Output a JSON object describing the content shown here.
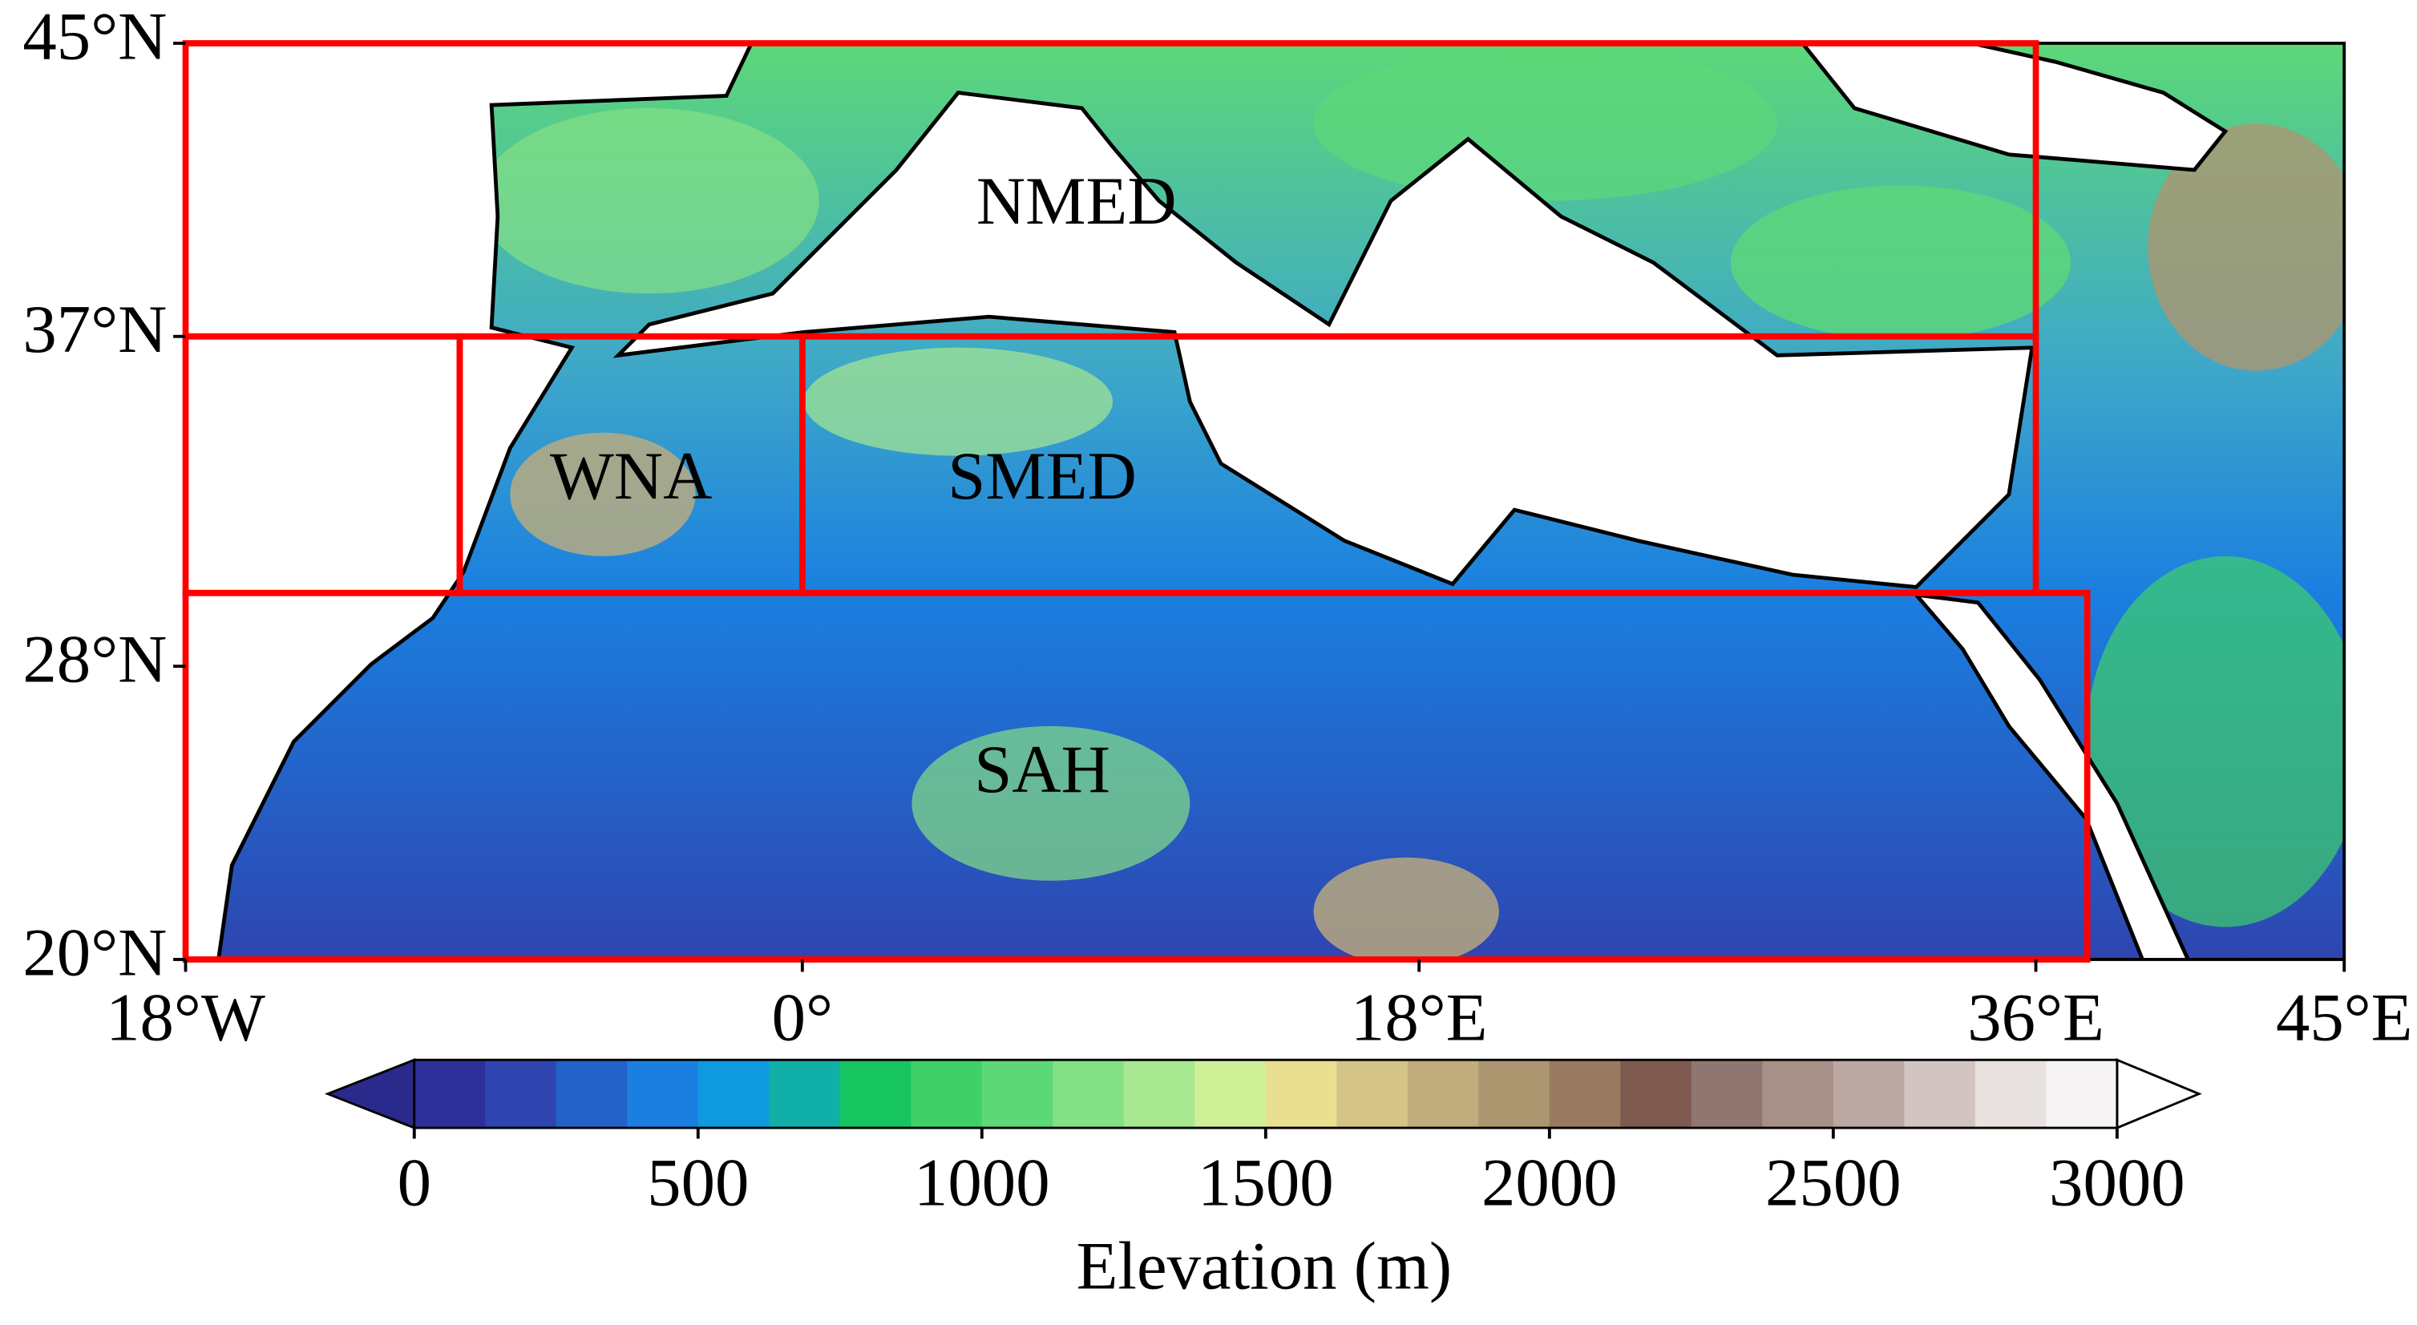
{
  "map": {
    "lonlim": [
      -18,
      45
    ],
    "latlim": [
      20,
      45
    ],
    "xticks": [
      {
        "value": -18,
        "label": "18°W"
      },
      {
        "value": 0,
        "label": "0°"
      },
      {
        "value": 18,
        "label": "18°E"
      },
      {
        "value": 36,
        "label": "36°E"
      },
      {
        "value": 45,
        "label": "45°E"
      }
    ],
    "yticks": [
      {
        "value": 20,
        "label": "20°N"
      },
      {
        "value": 28,
        "label": "28°N"
      },
      {
        "value": 37,
        "label": "37°N"
      },
      {
        "value": 45,
        "label": "45°N"
      }
    ],
    "regions": [
      {
        "label": "NMED",
        "lon": [
          -18,
          36
        ],
        "lat": [
          37,
          45
        ],
        "label_pos": [
          8,
          40.5
        ]
      },
      {
        "lon": [
          -18,
          -10
        ],
        "lat": [
          30,
          37
        ]
      },
      {
        "label": "WNA",
        "lon": [
          -10,
          0
        ],
        "lat": [
          30,
          37
        ],
        "label_pos": [
          -5,
          33
        ]
      },
      {
        "label": "SMED",
        "lon": [
          0,
          36
        ],
        "lat": [
          30,
          37
        ],
        "label_pos": [
          7,
          33
        ]
      },
      {
        "label": "SAH",
        "lon": [
          -18,
          37.5
        ],
        "lat": [
          20,
          30
        ],
        "label_pos": [
          7,
          25
        ]
      }
    ],
    "region_color": "#ff0000",
    "colorbar": {
      "label": "Elevation (m)",
      "clim": [
        0,
        3000
      ],
      "ticks": [
        0,
        500,
        1000,
        1500,
        2000,
        2500,
        3000
      ],
      "colors": [
        "#2f2f9a",
        "#2e45b0",
        "#2363c8",
        "#1a7fe0",
        "#0f9ae0",
        "#10b0a8",
        "#16c460",
        "#3fd06a",
        "#5cd878",
        "#84e084",
        "#a8e890",
        "#d0f098",
        "#e8e090",
        "#d4c488",
        "#c0ac7c",
        "#ac9670",
        "#987a60",
        "#7e5a50",
        "#907670",
        "#a69088",
        "#bca8a2",
        "#d2c4c0",
        "#e8e2e0",
        "#f6f4f4"
      ],
      "under_color": "#2a2a8c",
      "over_color": "#ffffff"
    }
  }
}
